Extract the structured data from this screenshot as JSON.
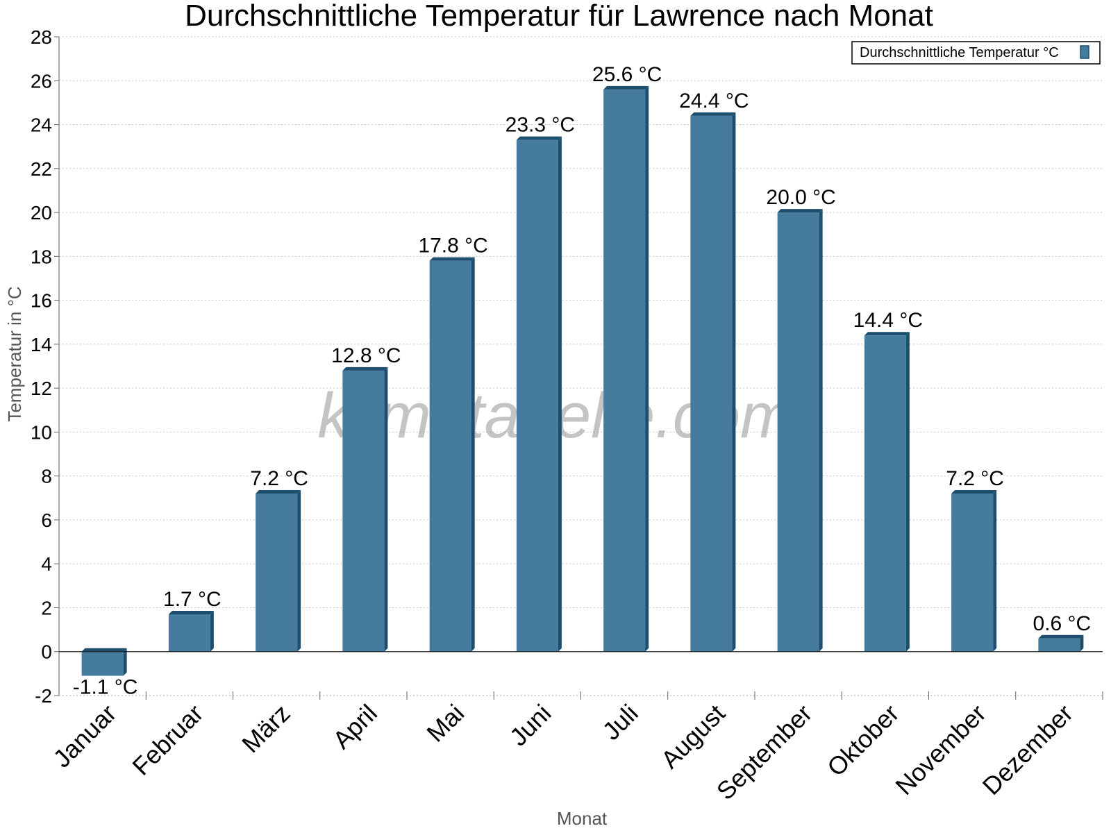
{
  "chart_data": {
    "type": "bar",
    "title": "Durchschnittliche Temperatur für Lawrence nach Monat",
    "xlabel": "Monat",
    "ylabel": "Temperatur in °C",
    "ylim": [
      -2,
      28
    ],
    "ytick_step": 2,
    "grid": true,
    "legend_position": "top-right",
    "categories": [
      "Januar",
      "Februar",
      "März",
      "April",
      "Mai",
      "Juni",
      "Juli",
      "August",
      "September",
      "Oktober",
      "November",
      "Dezember"
    ],
    "series": [
      {
        "name": "Durchschnittliche Temperatur °C",
        "values": [
          -1.1,
          1.7,
          7.2,
          12.8,
          17.8,
          23.3,
          25.6,
          24.4,
          20.0,
          14.4,
          7.2,
          0.6
        ],
        "labels": [
          "-1.1 °C",
          "1.7 °C",
          "7.2 °C",
          "12.8 °C",
          "17.8 °C",
          "23.3 °C",
          "25.6 °C",
          "24.4 °C",
          "20.0 °C",
          "14.4 °C",
          "7.2 °C",
          "0.6 °C"
        ],
        "color": "#457b9d",
        "edge_color": "#1d4e6e"
      }
    ]
  },
  "watermark": "klimatabelle.com"
}
